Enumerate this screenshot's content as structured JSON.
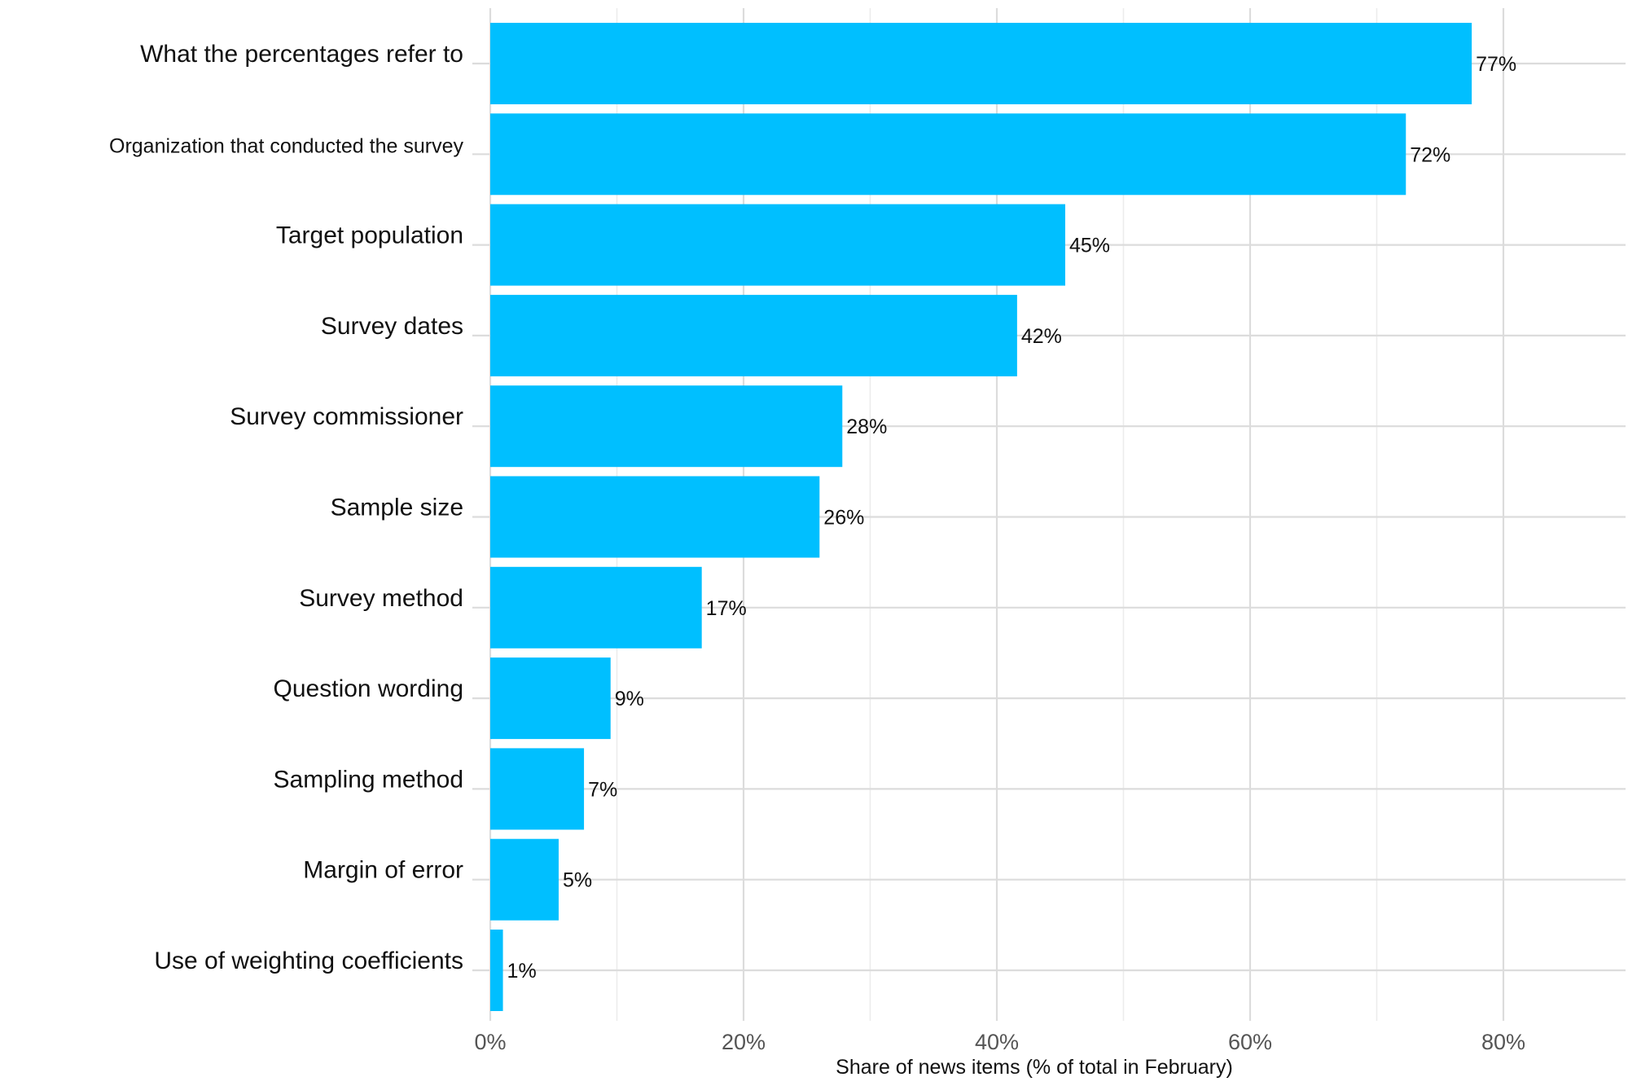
{
  "chart_data": {
    "type": "bar",
    "orientation": "horizontal",
    "categories": [
      "What the percentages refer to",
      "Organization that conducted the survey",
      "Target population",
      "Survey dates",
      "Survey commissioner",
      "Sample size",
      "Survey method",
      "Question wording",
      "Sampling method",
      "Margin of error",
      "Use of weighting coefficients"
    ],
    "values": [
      77.5,
      72.3,
      45.4,
      41.6,
      27.8,
      26.0,
      16.7,
      9.5,
      7.4,
      5.4,
      1.0
    ],
    "value_labels": [
      "77%",
      "72%",
      "45%",
      "42%",
      "28%",
      "26%",
      "17%",
      "9%",
      "7%",
      "5%",
      "1%"
    ],
    "xlabel": "Share of news items (% of total in February)",
    "ylabel": "",
    "xlim": [
      0,
      90
    ],
    "x_ticks": [
      0,
      20,
      40,
      60,
      80
    ],
    "x_tick_labels": [
      "0%",
      "20%",
      "40%",
      "60%",
      "80%"
    ],
    "grid": true,
    "legend": "none",
    "bar_color": "#00bfff"
  }
}
